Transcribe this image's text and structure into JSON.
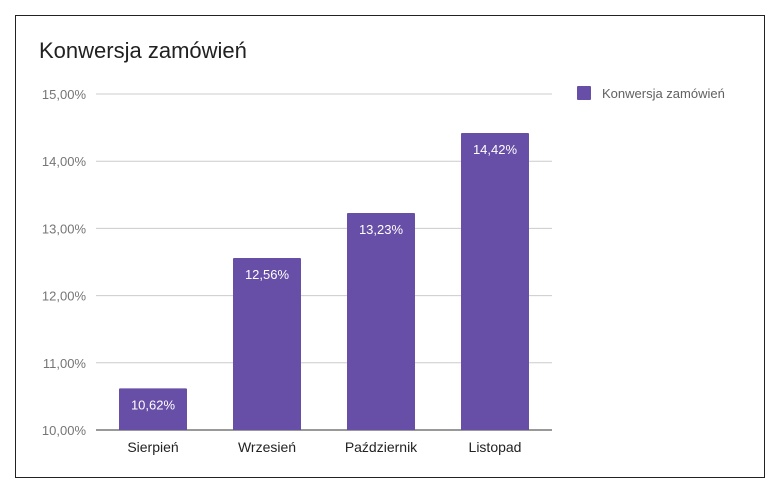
{
  "chart_data": {
    "type": "bar",
    "title": "Konwersja zamówień",
    "categories": [
      "Sierpień",
      "Wrzesień",
      "Październik",
      "Listopad"
    ],
    "series": [
      {
        "name": "Konwersja zamówień",
        "values": [
          10.62,
          12.56,
          13.23,
          14.42
        ],
        "value_labels": [
          "10,62%",
          "12,56%",
          "13,23%",
          "14,42%"
        ],
        "color": "#674ea7"
      }
    ],
    "ylim": [
      10,
      15
    ],
    "y_ticks": [
      10,
      11,
      12,
      13,
      14,
      15
    ],
    "y_tick_labels": [
      "10,00%",
      "11,00%",
      "12,00%",
      "13,00%",
      "14,00%",
      "15,00%"
    ],
    "xlabel": "",
    "ylabel": "",
    "grid": true,
    "legend_position": "right"
  }
}
